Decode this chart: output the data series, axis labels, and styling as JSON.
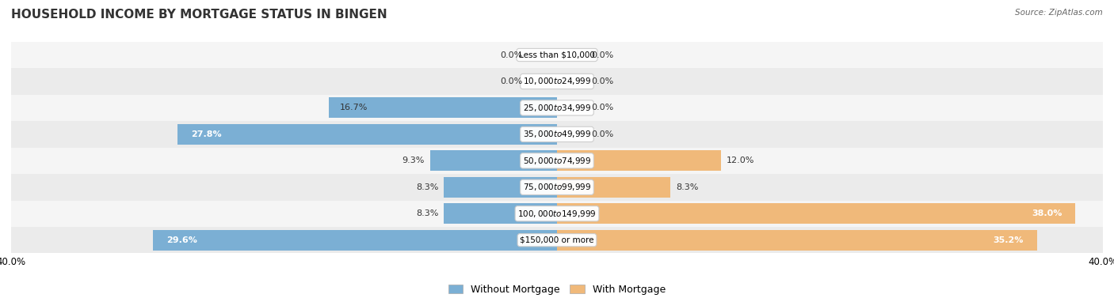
{
  "title": "HOUSEHOLD INCOME BY MORTGAGE STATUS IN BINGEN",
  "source": "Source: ZipAtlas.com",
  "categories": [
    "Less than $10,000",
    "$10,000 to $24,999",
    "$25,000 to $34,999",
    "$35,000 to $49,999",
    "$50,000 to $74,999",
    "$75,000 to $99,999",
    "$100,000 to $149,999",
    "$150,000 or more"
  ],
  "without_mortgage": [
    0.0,
    0.0,
    16.7,
    27.8,
    9.3,
    8.3,
    8.3,
    29.6
  ],
  "with_mortgage": [
    0.0,
    0.0,
    0.0,
    0.0,
    12.0,
    8.3,
    38.0,
    35.2
  ],
  "max_val": 40.0,
  "color_without": "#7bafd4",
  "color_with": "#f0b97a",
  "legend_without": "Without Mortgage",
  "legend_with": "With Mortgage",
  "title_fontsize": 11,
  "label_fontsize": 8.5,
  "axis_label_fontsize": 8.5,
  "row_colors": [
    "#f2f2f2",
    "#e8e8e8",
    "#f2f2f2",
    "#e8e8e8",
    "#f2f2f2",
    "#e8e8e8",
    "#f2f2f2",
    "#e8e8e8"
  ]
}
